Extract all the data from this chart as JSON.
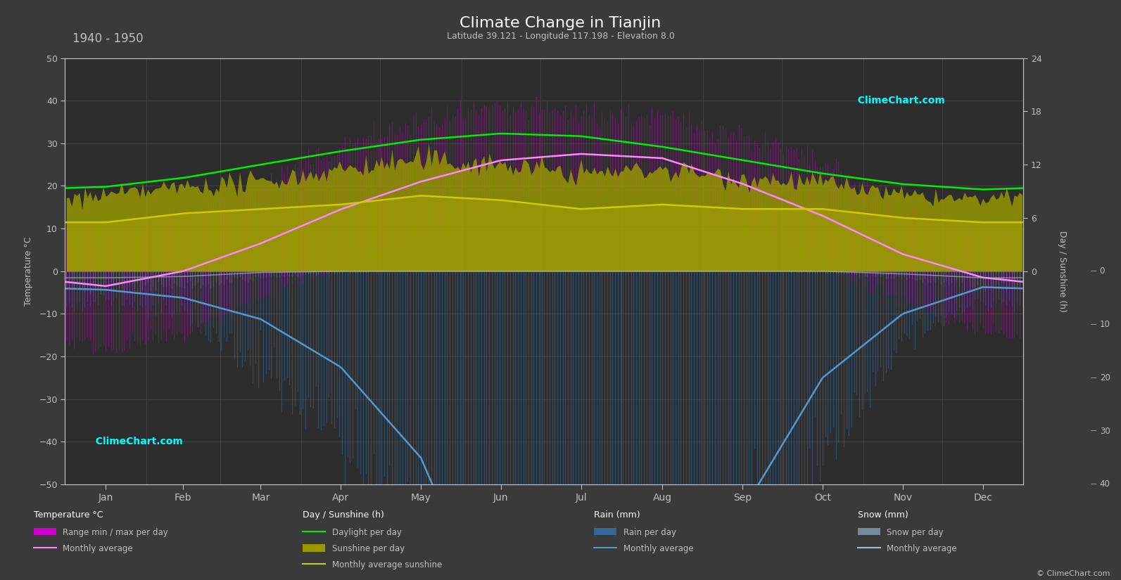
{
  "title": "Climate Change in Tianjin",
  "subtitle": "Latitude 39.121 - Longitude 117.198 - Elevation 8.0",
  "period": "1940 - 1950",
  "bg_color": "#3a3a3a",
  "plot_bg": "#2d2d2d",
  "grid_color": "#4d4d4d",
  "text_color": "#c0c0c0",
  "months": [
    "Jan",
    "Feb",
    "Mar",
    "Apr",
    "May",
    "Jun",
    "Jul",
    "Aug",
    "Sep",
    "Oct",
    "Nov",
    "Dec"
  ],
  "days_per_month": [
    31,
    28,
    31,
    30,
    31,
    30,
    31,
    31,
    30,
    31,
    30,
    31
  ],
  "temp_ylim": [
    -50,
    50
  ],
  "temp_ticks": [
    -50,
    -40,
    -30,
    -20,
    -10,
    0,
    10,
    20,
    30,
    40,
    50
  ],
  "sunshine_scale": 50,
  "rain_scale": 50,
  "temp_avg": [
    -3.5,
    0.0,
    6.5,
    14.5,
    21.0,
    26.0,
    27.5,
    26.5,
    20.5,
    13.0,
    4.0,
    -1.5
  ],
  "temp_max_abs": [
    9.0,
    13.0,
    20.0,
    29.0,
    35.0,
    38.0,
    37.0,
    36.0,
    32.0,
    25.0,
    15.0,
    9.0
  ],
  "temp_min_abs": [
    -18.0,
    -15.0,
    -6.0,
    1.0,
    9.0,
    16.0,
    20.0,
    19.0,
    11.0,
    2.0,
    -7.0,
    -14.0
  ],
  "daylight_h": [
    9.5,
    10.5,
    12.0,
    13.5,
    14.8,
    15.5,
    15.2,
    14.0,
    12.5,
    11.0,
    9.8,
    9.2
  ],
  "sunshine_avg_h": [
    5.5,
    6.5,
    7.0,
    7.5,
    8.5,
    8.0,
    7.0,
    7.5,
    7.0,
    7.0,
    6.0,
    5.5
  ],
  "sunshine_max_h": [
    8.5,
    9.5,
    10.0,
    11.5,
    12.5,
    12.0,
    11.0,
    11.5,
    10.5,
    10.0,
    8.5,
    8.0
  ],
  "rain_daily_max_mm": [
    6.0,
    8.0,
    18.0,
    32.0,
    55.0,
    95.0,
    200.0,
    160.0,
    70.0,
    35.0,
    12.0,
    6.0
  ],
  "rain_monthly_avg_mm": [
    3.5,
    5.0,
    9.0,
    18.0,
    35.0,
    70.0,
    160.0,
    130.0,
    45.0,
    20.0,
    8.0,
    3.0
  ],
  "snow_daily_max_mm": [
    5.0,
    4.5,
    2.0,
    0.3,
    0.0,
    0.0,
    0.0,
    0.0,
    0.0,
    0.3,
    2.0,
    5.0
  ],
  "snow_monthly_avg_mm": [
    2.5,
    2.0,
    0.5,
    0.0,
    0.0,
    0.0,
    0.0,
    0.0,
    0.0,
    0.0,
    1.0,
    2.5
  ],
  "colors": {
    "temp_range": "#cc00cc",
    "temp_avg": "#ff88ff",
    "daylight": "#00ee00",
    "sunshine_fill": "#999900",
    "sunshine_avg": "#cccc00",
    "rain_bar": "#336699",
    "rain_avg": "#5599cc",
    "snow_bar": "#778899",
    "snow_avg": "#aabbcc"
  },
  "right_axis_ticks_sunshine": [
    0,
    6,
    12,
    18,
    24
  ],
  "right_axis_ticks_rain": [
    0,
    10,
    20,
    30,
    40
  ]
}
